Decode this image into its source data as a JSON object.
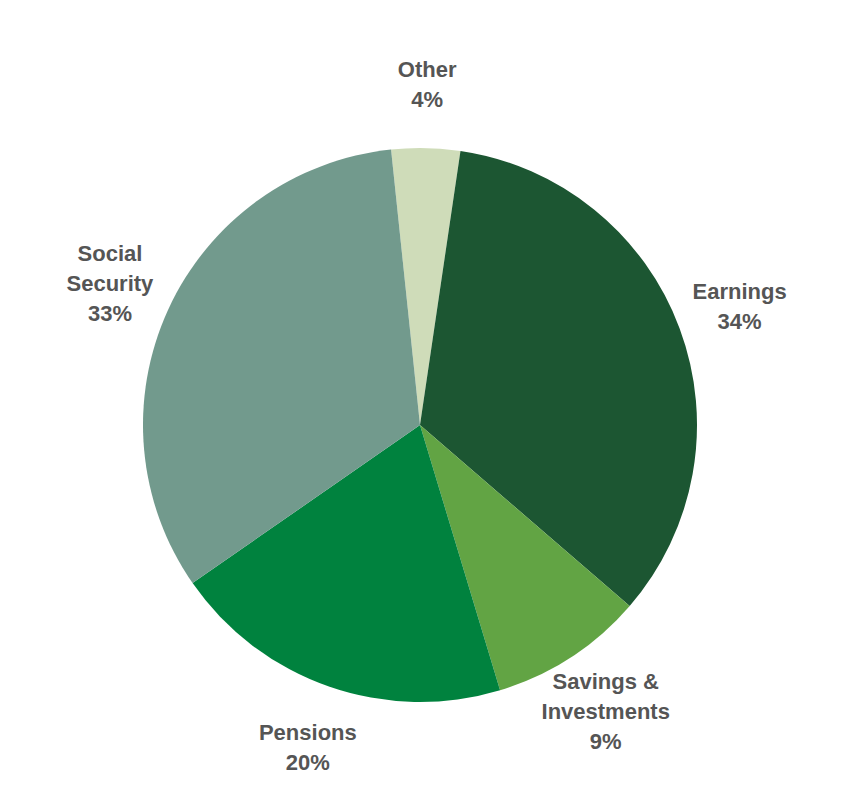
{
  "chart_data": {
    "type": "pie",
    "categories": [
      "Other",
      "Earnings",
      "Savings & Investments",
      "Pensions",
      "Social Security"
    ],
    "values": [
      4,
      34,
      9,
      20,
      33
    ],
    "value_labels": [
      "4%",
      "34%",
      "9%",
      "20%",
      "33%"
    ],
    "colors": [
      "#cfdcb9",
      "#1c5632",
      "#62a444",
      "#00823e",
      "#729a8d"
    ],
    "data_labels": true
  }
}
